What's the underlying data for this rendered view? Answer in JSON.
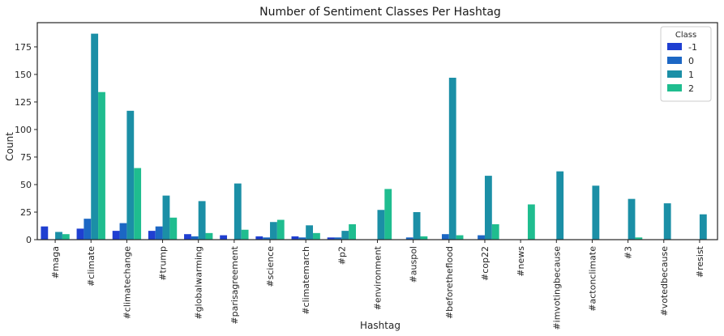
{
  "chart_data": {
    "type": "bar",
    "title": "Number of Sentiment Classes Per Hashtag",
    "xlabel": "Hashtag",
    "ylabel": "Count",
    "ylim": [
      0,
      197
    ],
    "yticks": [
      0,
      25,
      50,
      75,
      100,
      125,
      150,
      175
    ],
    "grid": false,
    "legend": {
      "title": "Class",
      "placement": "top-right"
    },
    "categories": [
      "#maga",
      "#climate",
      "#climatechange",
      "#trump",
      "#globalwarming",
      "#parisagreement",
      "#science",
      "#climatemarch",
      "#p2",
      "#environment",
      "#auspol",
      "#beforetheflood",
      "#cop22",
      "#news",
      "#imvotingbecause",
      "#actonclimate",
      "#3",
      "#votedbecause",
      "#resist"
    ],
    "series": [
      {
        "name": "-1",
        "color": "#1f3fd1",
        "values": [
          12,
          10,
          8,
          8,
          5,
          4,
          3,
          3,
          2,
          0,
          0,
          0,
          0,
          0,
          0,
          0,
          0,
          0,
          0
        ]
      },
      {
        "name": "0",
        "color": "#1c67c4",
        "values": [
          0,
          19,
          15,
          12,
          3,
          0,
          2,
          2,
          2,
          0,
          2,
          5,
          4,
          0,
          0,
          0,
          0,
          0,
          0
        ]
      },
      {
        "name": "1",
        "color": "#1b8fa6",
        "values": [
          7,
          187,
          117,
          40,
          35,
          51,
          16,
          13,
          8,
          27,
          25,
          147,
          58,
          0,
          62,
          49,
          37,
          33,
          23
        ]
      },
      {
        "name": "2",
        "color": "#1fbd8f",
        "values": [
          5,
          134,
          65,
          20,
          6,
          9,
          18,
          6,
          14,
          46,
          3,
          4,
          14,
          32,
          0,
          0,
          2,
          0,
          0
        ]
      }
    ]
  }
}
